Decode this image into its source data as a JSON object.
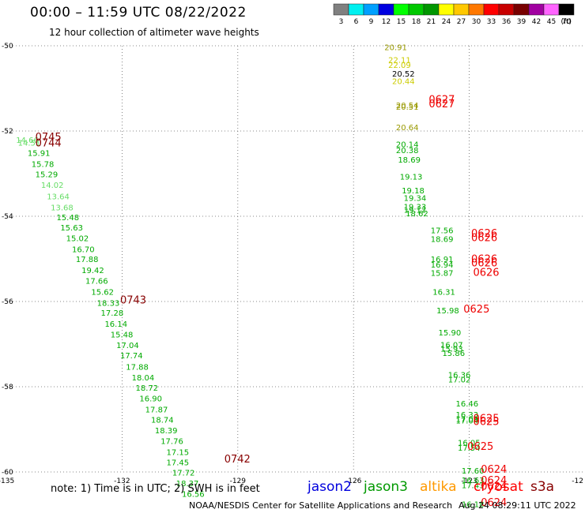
{
  "header": {
    "title": "00:00 – 11:59 UTC 08/22/2022",
    "subtitle": "12 hour collection of altimeter wave heights"
  },
  "colorbar": {
    "unit": "(ft)",
    "bins": [
      {
        "label": "3",
        "color": "#808080"
      },
      {
        "label": "6",
        "color": "#00f0f0"
      },
      {
        "label": "9",
        "color": "#00a0ff"
      },
      {
        "label": "12",
        "color": "#0000e0"
      },
      {
        "label": "15",
        "color": "#00ff00"
      },
      {
        "label": "18",
        "color": "#00c800"
      },
      {
        "label": "21",
        "color": "#009600"
      },
      {
        "label": "24",
        "color": "#ffff00"
      },
      {
        "label": "27",
        "color": "#ffc800"
      },
      {
        "label": "30",
        "color": "#ff7800"
      },
      {
        "label": "33",
        "color": "#ff0000"
      },
      {
        "label": "36",
        "color": "#c80000"
      },
      {
        "label": "39",
        "color": "#780000"
      },
      {
        "label": "42",
        "color": "#a000a0"
      },
      {
        "label": "45",
        "color": "#ff64ff"
      },
      {
        "label": "70",
        "color": "#000000"
      }
    ]
  },
  "missions": [
    {
      "name": "jason2",
      "color": "#0000dd"
    },
    {
      "name": "jason3",
      "color": "#009900"
    },
    {
      "name": "altika",
      "color": "#ff9900"
    },
    {
      "name": "cryosat",
      "color": "#ff0000"
    },
    {
      "name": "s3a",
      "color": "#880000"
    }
  ],
  "footer": {
    "note": "note:  1) Time is in UTC;  2) SWH is in feet",
    "credit": "NOAA/NESDIS Center for Satellite Applications and Research",
    "timestamp": "Aug 24 08:29:11 UTC 2022"
  },
  "chart_data": {
    "type": "scatter",
    "xlim": [
      -135,
      -120
    ],
    "ylim": [
      -60,
      -50
    ],
    "x_ticks": [
      "-135",
      "-132",
      "-129",
      "-126",
      "-123",
      "-12"
    ],
    "y_ticks": [
      "-50",
      "-52",
      "-54",
      "-56",
      "-58",
      "-60"
    ],
    "grid": true,
    "points": [
      {
        "x": -134.75,
        "y": -52.28,
        "v": "14.66",
        "c": "#66dd66"
      },
      {
        "x": -134.7,
        "y": -52.34,
        "v": "14.51",
        "c": "#66dd66"
      },
      {
        "x": -134.45,
        "y": -52.58,
        "v": "15.91",
        "c": "#00aa00"
      },
      {
        "x": -134.35,
        "y": -52.84,
        "v": "15.78",
        "c": "#00aa00"
      },
      {
        "x": -134.25,
        "y": -53.08,
        "v": "15.29",
        "c": "#00aa00"
      },
      {
        "x": -134.1,
        "y": -53.33,
        "v": "14.02",
        "c": "#66dd66"
      },
      {
        "x": -133.95,
        "y": -53.6,
        "v": "13.64",
        "c": "#66dd66"
      },
      {
        "x": -133.85,
        "y": -53.86,
        "v": "13.68",
        "c": "#66dd66"
      },
      {
        "x": -133.7,
        "y": -54.09,
        "v": "15.48",
        "c": "#00aa00"
      },
      {
        "x": -133.6,
        "y": -54.33,
        "v": "15.63",
        "c": "#00aa00"
      },
      {
        "x": -133.45,
        "y": -54.58,
        "v": "15.02",
        "c": "#00aa00"
      },
      {
        "x": -133.3,
        "y": -54.84,
        "v": "16.70",
        "c": "#00aa00"
      },
      {
        "x": -133.2,
        "y": -55.07,
        "v": "17.88",
        "c": "#00aa00"
      },
      {
        "x": -133.05,
        "y": -55.33,
        "v": "19.42",
        "c": "#00aa00"
      },
      {
        "x": -132.95,
        "y": -55.58,
        "v": "17.66",
        "c": "#00aa00"
      },
      {
        "x": -132.8,
        "y": -55.84,
        "v": "15.62",
        "c": "#00aa00"
      },
      {
        "x": -132.65,
        "y": -56.1,
        "v": "18.33",
        "c": "#00aa00"
      },
      {
        "x": -132.55,
        "y": -56.33,
        "v": "17.28",
        "c": "#00aa00"
      },
      {
        "x": -132.45,
        "y": -56.59,
        "v": "16.14",
        "c": "#00aa00"
      },
      {
        "x": -132.3,
        "y": -56.84,
        "v": "15.48",
        "c": "#00aa00"
      },
      {
        "x": -132.15,
        "y": -57.09,
        "v": "17.04",
        "c": "#00aa00"
      },
      {
        "x": -132.05,
        "y": -57.33,
        "v": "17.74",
        "c": "#00aa00"
      },
      {
        "x": -131.9,
        "y": -57.6,
        "v": "17.88",
        "c": "#00aa00"
      },
      {
        "x": -131.75,
        "y": -57.85,
        "v": "18.04",
        "c": "#00aa00"
      },
      {
        "x": -131.65,
        "y": -58.09,
        "v": "18.72",
        "c": "#00aa00"
      },
      {
        "x": -131.55,
        "y": -58.34,
        "v": "16.90",
        "c": "#00aa00"
      },
      {
        "x": -131.4,
        "y": -58.6,
        "v": "17.87",
        "c": "#00aa00"
      },
      {
        "x": -131.25,
        "y": -58.84,
        "v": "18.74",
        "c": "#00aa00"
      },
      {
        "x": -131.15,
        "y": -59.09,
        "v": "18.39",
        "c": "#00aa00"
      },
      {
        "x": -131.0,
        "y": -59.34,
        "v": "17.76",
        "c": "#00aa00"
      },
      {
        "x": -130.85,
        "y": -59.6,
        "v": "17.15",
        "c": "#00aa00"
      },
      {
        "x": -130.85,
        "y": -59.84,
        "v": "17.45",
        "c": "#00aa00"
      },
      {
        "x": -130.7,
        "y": -60.08,
        "v": "17.72",
        "c": "#00aa00"
      },
      {
        "x": -130.6,
        "y": -60.33,
        "v": "18.37",
        "c": "#00aa00"
      },
      {
        "x": -130.45,
        "y": -60.58,
        "v": "16.56",
        "c": "#00aa00"
      },
      {
        "x": -125.2,
        "y": -50.1,
        "v": "20.91",
        "c": "#999900"
      },
      {
        "x": -125.1,
        "y": -50.4,
        "v": "22.11",
        "c": "#cccc00"
      },
      {
        "x": -125.1,
        "y": -50.52,
        "v": "22.09",
        "c": "#cccc00"
      },
      {
        "x": -125.0,
        "y": -50.72,
        "v": "20.52",
        "c": "#000000"
      },
      {
        "x": -125.0,
        "y": -50.9,
        "v": "20.44",
        "c": "#cccc00"
      },
      {
        "x": -124.9,
        "y": -51.5,
        "v": "20.51",
        "c": "#999900"
      },
      {
        "x": -124.9,
        "y": -51.46,
        "v": "20.54",
        "c": "#999900"
      },
      {
        "x": -124.9,
        "y": -51.98,
        "v": "20.64",
        "c": "#999900"
      },
      {
        "x": -124.9,
        "y": -52.38,
        "v": "20.14",
        "c": "#00aa00"
      },
      {
        "x": -124.9,
        "y": -52.52,
        "v": "20.38",
        "c": "#00aa00"
      },
      {
        "x": -124.85,
        "y": -52.74,
        "v": "18.69",
        "c": "#00aa00"
      },
      {
        "x": -124.8,
        "y": -53.14,
        "v": "19.13",
        "c": "#00aa00"
      },
      {
        "x": -124.75,
        "y": -53.46,
        "v": "19.18",
        "c": "#00aa00"
      },
      {
        "x": -124.7,
        "y": -53.64,
        "v": "19.34",
        "c": "#00aa00"
      },
      {
        "x": -124.7,
        "y": -53.84,
        "v": "19.33",
        "c": "#00aa00"
      },
      {
        "x": -124.7,
        "y": -53.92,
        "v": "19.12",
        "c": "#00aa00"
      },
      {
        "x": -124.65,
        "y": -54.0,
        "v": "18.62",
        "c": "#00aa00"
      },
      {
        "x": -124.0,
        "y": -54.4,
        "v": "17.56",
        "c": "#00aa00"
      },
      {
        "x": -124.0,
        "y": -54.6,
        "v": "18.69",
        "c": "#00aa00"
      },
      {
        "x": -124.0,
        "y": -55.07,
        "v": "16.91",
        "c": "#00aa00"
      },
      {
        "x": -124.0,
        "y": -55.2,
        "v": "16.94",
        "c": "#00aa00"
      },
      {
        "x": -124.0,
        "y": -55.4,
        "v": "15.87",
        "c": "#00aa00"
      },
      {
        "x": -123.95,
        "y": -55.84,
        "v": "16.31",
        "c": "#00aa00"
      },
      {
        "x": -123.85,
        "y": -56.28,
        "v": "15.98",
        "c": "#00aa00"
      },
      {
        "x": -123.8,
        "y": -56.8,
        "v": "15.90",
        "c": "#00aa00"
      },
      {
        "x": -123.75,
        "y": -57.08,
        "v": "16.07",
        "c": "#00aa00"
      },
      {
        "x": -123.75,
        "y": -57.18,
        "v": "15.93",
        "c": "#00aa00"
      },
      {
        "x": -123.7,
        "y": -57.28,
        "v": "15.86",
        "c": "#00aa00"
      },
      {
        "x": -123.55,
        "y": -57.79,
        "v": "16.36",
        "c": "#00aa00"
      },
      {
        "x": -123.55,
        "y": -57.9,
        "v": "17.02",
        "c": "#00aa00"
      },
      {
        "x": -123.35,
        "y": -58.46,
        "v": "16.46",
        "c": "#00aa00"
      },
      {
        "x": -123.35,
        "y": -58.72,
        "v": "16.33",
        "c": "#00aa00"
      },
      {
        "x": -123.35,
        "y": -58.82,
        "v": "17.09",
        "c": "#00aa00"
      },
      {
        "x": -123.35,
        "y": -58.86,
        "v": "17.04",
        "c": "#00aa00"
      },
      {
        "x": -123.3,
        "y": -59.38,
        "v": "16.05",
        "c": "#00aa00"
      },
      {
        "x": -123.3,
        "y": -59.5,
        "v": "17.54",
        "c": "#00aa00"
      },
      {
        "x": -123.2,
        "y": -60.04,
        "v": "17.60",
        "c": "#00aa00"
      },
      {
        "x": -123.2,
        "y": -60.26,
        "v": "16.63",
        "c": "#00aa00"
      },
      {
        "x": -123.2,
        "y": -60.38,
        "v": "17.43",
        "c": "#00aa00"
      },
      {
        "x": -123.2,
        "y": -60.82,
        "v": "16.18",
        "c": "#00aa00"
      }
    ],
    "time_labels": [
      {
        "x": -134.25,
        "y": -52.22,
        "t": "0745",
        "c": "#880000"
      },
      {
        "x": -134.25,
        "y": -52.36,
        "t": "0744",
        "c": "#880000"
      },
      {
        "x": -132.05,
        "y": -56.05,
        "t": "0743",
        "c": "#880000"
      },
      {
        "x": -129.35,
        "y": -59.78,
        "t": "0742",
        "c": "#880000"
      },
      {
        "x": -124.05,
        "y": -51.34,
        "t": "0627",
        "c": "#ee0000"
      },
      {
        "x": -124.05,
        "y": -51.44,
        "t": "0627",
        "c": "#ee0000"
      },
      {
        "x": -122.95,
        "y": -54.48,
        "t": "0626",
        "c": "#ee0000"
      },
      {
        "x": -122.95,
        "y": -54.58,
        "t": "0626",
        "c": "#ee0000"
      },
      {
        "x": -122.95,
        "y": -55.08,
        "t": "0626",
        "c": "#ee0000"
      },
      {
        "x": -122.95,
        "y": -55.18,
        "t": "0626",
        "c": "#ee0000"
      },
      {
        "x": -122.9,
        "y": -55.4,
        "t": "0626",
        "c": "#ee0000"
      },
      {
        "x": -123.15,
        "y": -56.26,
        "t": "0625",
        "c": "#ee0000"
      },
      {
        "x": -122.9,
        "y": -58.82,
        "t": "0625",
        "c": "#ee0000"
      },
      {
        "x": -122.9,
        "y": -58.9,
        "t": "0625",
        "c": "#ee0000"
      },
      {
        "x": -123.05,
        "y": -59.48,
        "t": "0625",
        "c": "#ee0000"
      },
      {
        "x": -122.7,
        "y": -60.02,
        "t": "0624",
        "c": "#ee0000"
      },
      {
        "x": -122.7,
        "y": -60.28,
        "t": "0624",
        "c": "#ee0000"
      },
      {
        "x": -122.7,
        "y": -60.42,
        "t": "0624",
        "c": "#ee0000"
      },
      {
        "x": -122.7,
        "y": -60.8,
        "t": "0624",
        "c": "#ee0000"
      }
    ]
  }
}
